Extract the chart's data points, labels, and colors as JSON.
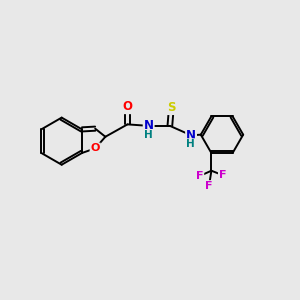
{
  "background_color": "#e8e8e8",
  "bond_color": "#000000",
  "atom_colors": {
    "O": "#ff0000",
    "N": "#0000cc",
    "H": "#008080",
    "S": "#cccc00",
    "F": "#cc00cc",
    "C": "#000000"
  },
  "figsize": [
    3.0,
    3.0
  ],
  "dpi": 100,
  "lw": 1.4
}
